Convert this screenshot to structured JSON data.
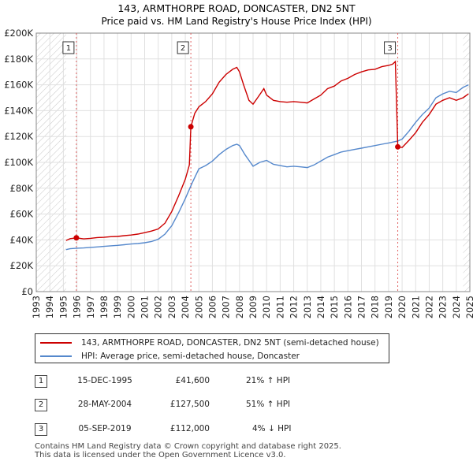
{
  "chart_data": {
    "type": "line",
    "title": "143, ARMTHORPE ROAD, DONCASTER, DN2 5NT",
    "subtitle": "Price paid vs. HM Land Registry's House Price Index (HPI)",
    "xlabel": "",
    "ylabel": "",
    "xlim": [
      1993,
      2025
    ],
    "ylim": [
      0,
      200000
    ],
    "y_ticks": [
      {
        "value": 0,
        "label": "£0"
      },
      {
        "value": 20000,
        "label": "£20K"
      },
      {
        "value": 40000,
        "label": "£40K"
      },
      {
        "value": 60000,
        "label": "£60K"
      },
      {
        "value": 80000,
        "label": "£80K"
      },
      {
        "value": 100000,
        "label": "£100K"
      },
      {
        "value": 120000,
        "label": "£120K"
      },
      {
        "value": 140000,
        "label": "£140K"
      },
      {
        "value": 160000,
        "label": "£160K"
      },
      {
        "value": 180000,
        "label": "£180K"
      },
      {
        "value": 200000,
        "label": "£200K"
      }
    ],
    "x_ticks": [
      "1993",
      "1994",
      "1995",
      "1996",
      "1997",
      "1998",
      "1999",
      "2000",
      "2001",
      "2002",
      "2003",
      "2004",
      "2005",
      "2006",
      "2007",
      "2008",
      "2009",
      "2010",
      "2011",
      "2012",
      "2013",
      "2014",
      "2015",
      "2016",
      "2017",
      "2018",
      "2019",
      "2020",
      "2021",
      "2022",
      "2023",
      "2024",
      "2025"
    ],
    "grid": true,
    "hatched_ranges": [
      [
        1993,
        1995.2
      ],
      [
        2024.5,
        2025
      ]
    ],
    "series": [
      {
        "name": "143, ARMTHORPE ROAD, DONCASTER, DN2 5NT (semi-detached house)",
        "color": "#cc0000",
        "points": [
          [
            1995.2,
            39600
          ],
          [
            1995.5,
            41000
          ],
          [
            1995.96,
            41600
          ],
          [
            1996.5,
            40800
          ],
          [
            1997,
            41200
          ],
          [
            1997.5,
            41800
          ],
          [
            1998,
            42000
          ],
          [
            1998.5,
            42500
          ],
          [
            1999,
            42700
          ],
          [
            1999.5,
            43300
          ],
          [
            2000,
            43800
          ],
          [
            2000.5,
            44500
          ],
          [
            2001,
            45600
          ],
          [
            2001.5,
            46800
          ],
          [
            2002,
            48500
          ],
          [
            2002.5,
            53000
          ],
          [
            2003,
            62000
          ],
          [
            2003.5,
            74000
          ],
          [
            2004,
            87000
          ],
          [
            2004.3,
            98000
          ],
          [
            2004.41,
            127500
          ],
          [
            2004.7,
            138000
          ],
          [
            2005,
            143000
          ],
          [
            2005.5,
            147000
          ],
          [
            2006,
            153000
          ],
          [
            2006.5,
            162000
          ],
          [
            2007,
            168000
          ],
          [
            2007.5,
            172000
          ],
          [
            2007.8,
            173500
          ],
          [
            2008,
            170000
          ],
          [
            2008.3,
            160000
          ],
          [
            2008.7,
            148000
          ],
          [
            2009,
            145000
          ],
          [
            2009.4,
            151000
          ],
          [
            2009.8,
            157000
          ],
          [
            2010,
            152000
          ],
          [
            2010.5,
            148000
          ],
          [
            2011,
            147000
          ],
          [
            2011.5,
            146500
          ],
          [
            2012,
            147000
          ],
          [
            2012.5,
            146500
          ],
          [
            2013,
            146000
          ],
          [
            2013.5,
            149000
          ],
          [
            2014,
            152000
          ],
          [
            2014.5,
            157000
          ],
          [
            2015,
            159000
          ],
          [
            2015.5,
            163000
          ],
          [
            2016,
            165000
          ],
          [
            2016.5,
            168000
          ],
          [
            2017,
            170000
          ],
          [
            2017.5,
            171500
          ],
          [
            2018,
            172000
          ],
          [
            2018.5,
            174000
          ],
          [
            2019,
            175000
          ],
          [
            2019.3,
            176000
          ],
          [
            2019.5,
            178000
          ],
          [
            2019.68,
            112000
          ],
          [
            2020,
            111500
          ],
          [
            2020.5,
            117000
          ],
          [
            2021,
            123000
          ],
          [
            2021.5,
            131000
          ],
          [
            2022,
            137000
          ],
          [
            2022.5,
            145000
          ],
          [
            2023,
            148000
          ],
          [
            2023.5,
            150000
          ],
          [
            2024,
            148000
          ],
          [
            2024.5,
            150000
          ],
          [
            2024.9,
            153000
          ]
        ]
      },
      {
        "name": "HPI: Average price, semi-detached house, Doncaster",
        "color": "#5588cc",
        "points": [
          [
            1995.2,
            32500
          ],
          [
            1995.5,
            33200
          ],
          [
            1996,
            33600
          ],
          [
            1996.5,
            33800
          ],
          [
            1997,
            34200
          ],
          [
            1997.5,
            34600
          ],
          [
            1998,
            35000
          ],
          [
            1998.5,
            35400
          ],
          [
            1999,
            35800
          ],
          [
            1999.5,
            36300
          ],
          [
            2000,
            36800
          ],
          [
            2000.5,
            37200
          ],
          [
            2001,
            37800
          ],
          [
            2001.5,
            38700
          ],
          [
            2002,
            40500
          ],
          [
            2002.5,
            44500
          ],
          [
            2003,
            51000
          ],
          [
            2003.5,
            61000
          ],
          [
            2004,
            72000
          ],
          [
            2004.5,
            84000
          ],
          [
            2005,
            95000
          ],
          [
            2005.5,
            97500
          ],
          [
            2006,
            101000
          ],
          [
            2006.5,
            106000
          ],
          [
            2007,
            110000
          ],
          [
            2007.5,
            113000
          ],
          [
            2007.8,
            114000
          ],
          [
            2008,
            113000
          ],
          [
            2008.4,
            106000
          ],
          [
            2008.8,
            100000
          ],
          [
            2009,
            97000
          ],
          [
            2009.5,
            100000
          ],
          [
            2010,
            101500
          ],
          [
            2010.5,
            98500
          ],
          [
            2011,
            97500
          ],
          [
            2011.5,
            96500
          ],
          [
            2012,
            97000
          ],
          [
            2012.5,
            96500
          ],
          [
            2013,
            96000
          ],
          [
            2013.5,
            98000
          ],
          [
            2014,
            101000
          ],
          [
            2014.5,
            104000
          ],
          [
            2015,
            106000
          ],
          [
            2015.5,
            108000
          ],
          [
            2016,
            109000
          ],
          [
            2016.5,
            110000
          ],
          [
            2017,
            111000
          ],
          [
            2017.5,
            112000
          ],
          [
            2018,
            113000
          ],
          [
            2018.5,
            114000
          ],
          [
            2019,
            115000
          ],
          [
            2019.68,
            116500
          ],
          [
            2020,
            118000
          ],
          [
            2020.5,
            124000
          ],
          [
            2021,
            131000
          ],
          [
            2021.5,
            137000
          ],
          [
            2022,
            142000
          ],
          [
            2022.5,
            150000
          ],
          [
            2023,
            153000
          ],
          [
            2023.5,
            155000
          ],
          [
            2024,
            154000
          ],
          [
            2024.5,
            158000
          ],
          [
            2024.9,
            160000
          ]
        ]
      }
    ],
    "sales_markers": [
      {
        "label": "1",
        "x": 1995.96,
        "y": 41600
      },
      {
        "label": "2",
        "x": 2004.41,
        "y": 127500
      },
      {
        "label": "3",
        "x": 2019.68,
        "y": 112000
      }
    ]
  },
  "legend": {
    "price_paid_label": "143, ARMTHORPE ROAD, DONCASTER, DN2 5NT (semi-detached house)",
    "hpi_label": "HPI: Average price, semi-detached house, Doncaster",
    "price_color": "#cc0000",
    "hpi_color": "#5588cc"
  },
  "sales": [
    {
      "num": "1",
      "date": "15-DEC-1995",
      "price": "£41,600",
      "hpi": "21% ↑ HPI"
    },
    {
      "num": "2",
      "date": "28-MAY-2004",
      "price": "£127,500",
      "hpi": "51% ↑ HPI"
    },
    {
      "num": "3",
      "date": "05-SEP-2019",
      "price": "£112,000",
      "hpi": "4% ↓ HPI"
    }
  ],
  "footer": {
    "line1": "Contains HM Land Registry data © Crown copyright and database right 2025.",
    "line2": "This data is licensed under the Open Government Licence v3.0."
  }
}
